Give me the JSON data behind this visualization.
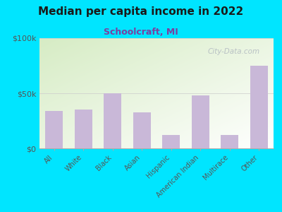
{
  "title": "Median per capita income in 2022",
  "subtitle": "Schoolcraft, MI",
  "categories": [
    "All",
    "White",
    "Black",
    "Asian",
    "Hispanic",
    "American Indian",
    "Multirace",
    "Other"
  ],
  "values": [
    34000,
    35000,
    50000,
    33000,
    12000,
    48000,
    12000,
    75000
  ],
  "bar_color": "#c9b8d8",
  "background_outer": "#00e5ff",
  "background_inner_top_left": "#d6ecc4",
  "background_inner_bottom_right": "#ffffff",
  "title_color": "#1a1a1a",
  "subtitle_color": "#7b3fa0",
  "tick_label_color": "#555555",
  "ytick_labels": [
    "$0",
    "$50k",
    "$100k"
  ],
  "ytick_values": [
    0,
    50000,
    100000
  ],
  "ylim": [
    0,
    100000
  ],
  "watermark": "City-Data.com"
}
